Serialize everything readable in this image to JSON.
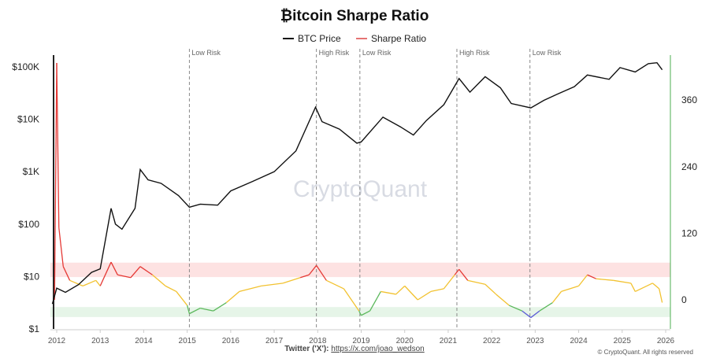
{
  "chart_data": {
    "type": "line",
    "title": "₿itcoin Sharpe Ratio",
    "legend": [
      {
        "name": "BTC Price",
        "color": "#111111"
      },
      {
        "name": "Sharpe Ratio",
        "color": "#e57373"
      }
    ],
    "legend_placement": "top-center",
    "watermark": "CryptoQuant",
    "x_ticks": [
      "2012",
      "2013",
      "2014",
      "2015",
      "2016",
      "2017",
      "2018",
      "2019",
      "2020",
      "2021",
      "2022",
      "2023",
      "2024",
      "2025",
      "2026"
    ],
    "xlim": [
      2011.85,
      2026.1
    ],
    "y_left": {
      "scale": "log",
      "ticks": [
        "$1",
        "$10",
        "$100",
        "$1K",
        "$10K",
        "$100K"
      ],
      "tick_values": [
        1,
        10,
        100,
        1000,
        10000,
        100000
      ]
    },
    "y_right": {
      "scale": "linear",
      "ticks": [
        "0",
        "120",
        "240",
        "360"
      ],
      "tick_values": [
        0,
        120,
        240,
        360
      ],
      "color": "#4caf50"
    },
    "bands": [
      {
        "from": 41,
        "to": 67,
        "color": "#fde2e2",
        "meaning": "High Risk"
      },
      {
        "from": -31,
        "to": -13,
        "color": "#e6f5e8",
        "meaning": "Low Risk"
      }
    ],
    "sharpe_colors": {
      "high": "#e53935",
      "neutral": "#f2c230",
      "low": "#5cb85c",
      "extreme_low": "#5b5bd6"
    },
    "events": [
      {
        "x": 2015.05,
        "label": "Low Risk"
      },
      {
        "x": 2017.97,
        "label": "High Risk"
      },
      {
        "x": 2018.97,
        "label": "Low Risk"
      },
      {
        "x": 2021.2,
        "label": "High Risk"
      },
      {
        "x": 2022.88,
        "label": "Low Risk"
      }
    ],
    "series": [
      {
        "name": "BTC Price",
        "axis": "left",
        "x": [
          2011.9,
          2012.0,
          2012.2,
          2012.5,
          2012.8,
          2013.0,
          2013.25,
          2013.35,
          2013.5,
          2013.8,
          2013.92,
          2014.1,
          2014.4,
          2014.8,
          2015.05,
          2015.3,
          2015.7,
          2016.0,
          2016.5,
          2017.0,
          2017.5,
          2017.95,
          2018.1,
          2018.5,
          2018.9,
          2019.0,
          2019.5,
          2019.9,
          2020.2,
          2020.5,
          2020.9,
          2021.25,
          2021.5,
          2021.85,
          2022.2,
          2022.45,
          2022.9,
          2023.2,
          2023.5,
          2023.9,
          2024.2,
          2024.7,
          2024.95,
          2025.3,
          2025.6,
          2025.8,
          2025.92
        ],
        "y": [
          3,
          6,
          5,
          7,
          12,
          14,
          200,
          100,
          80,
          200,
          1100,
          700,
          600,
          350,
          210,
          240,
          230,
          430,
          650,
          1000,
          2500,
          17000,
          9000,
          6500,
          3500,
          3700,
          11000,
          7200,
          5000,
          9500,
          19000,
          60000,
          33000,
          65000,
          40000,
          20000,
          16500,
          23000,
          30000,
          42000,
          70000,
          58000,
          97000,
          80000,
          115000,
          120000,
          88000
        ]
      },
      {
        "name": "Sharpe Ratio",
        "axis": "right",
        "x": [
          2011.95,
          2012.0,
          2012.05,
          2012.15,
          2012.3,
          2012.6,
          2012.9,
          2013.0,
          2013.25,
          2013.4,
          2013.7,
          2013.92,
          2014.2,
          2014.5,
          2014.75,
          2015.0,
          2015.05,
          2015.3,
          2015.6,
          2015.9,
          2016.2,
          2016.7,
          2017.2,
          2017.6,
          2017.8,
          2017.97,
          2018.2,
          2018.6,
          2018.95,
          2019.0,
          2019.2,
          2019.45,
          2019.8,
          2020.0,
          2020.3,
          2020.6,
          2020.9,
          2021.15,
          2021.25,
          2021.45,
          2021.85,
          2022.1,
          2022.4,
          2022.7,
          2022.9,
          2023.1,
          2023.4,
          2023.6,
          2024.0,
          2024.2,
          2024.4,
          2024.8,
          2025.2,
          2025.3,
          2025.7,
          2025.85,
          2025.92
        ],
        "y": [
          0,
          427,
          130,
          60,
          35,
          25,
          35,
          25,
          68,
          45,
          40,
          60,
          45,
          25,
          15,
          -10,
          -25,
          -15,
          -20,
          -5,
          15,
          25,
          30,
          40,
          45,
          62,
          35,
          20,
          -20,
          -28,
          -20,
          15,
          10,
          25,
          0,
          15,
          20,
          45,
          55,
          35,
          28,
          10,
          -10,
          -20,
          -32,
          -20,
          -5,
          15,
          25,
          45,
          38,
          35,
          30,
          15,
          30,
          20,
          -5
        ]
      }
    ]
  },
  "footer": {
    "twitter_label": "Twitter ('X'):",
    "twitter_link": "https://x.com/joao_wedson",
    "copyright": "© CryptoQuant. All rights reserved"
  }
}
